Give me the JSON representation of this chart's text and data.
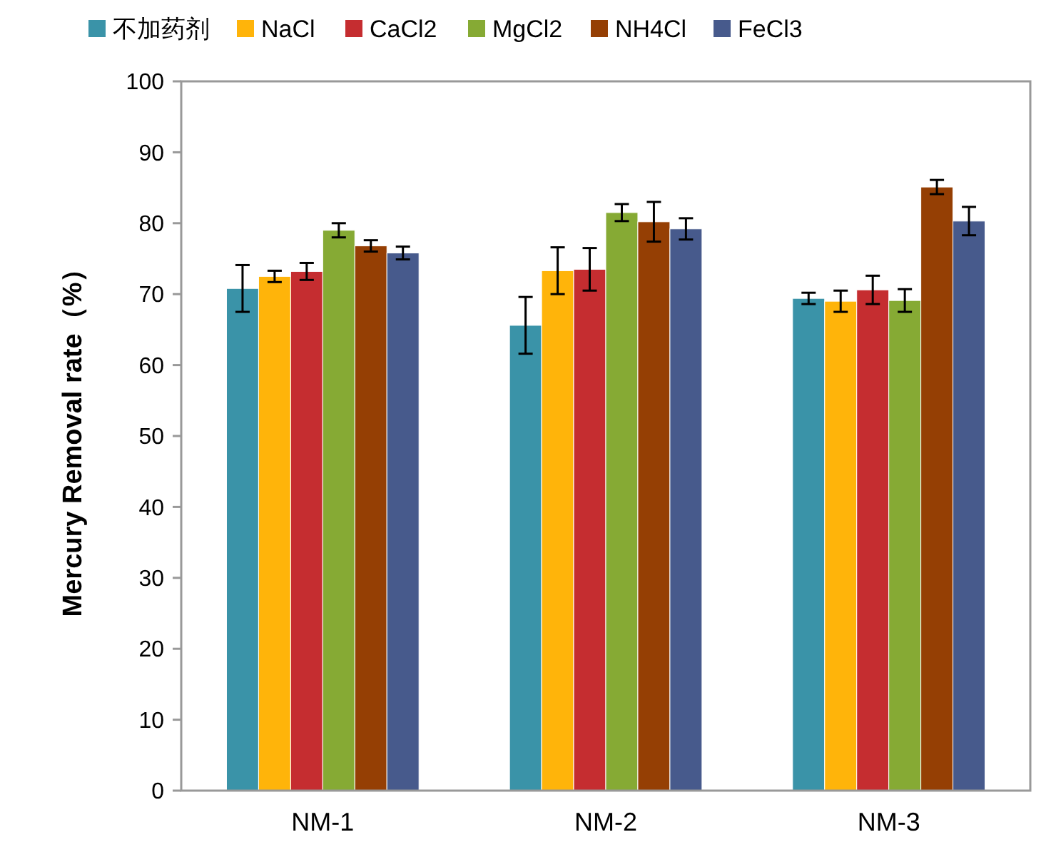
{
  "chart_data": {
    "type": "bar",
    "categories": [
      "NM-1",
      "NM-2",
      "NM-3"
    ],
    "ylabel": "Mercury Removal rate（%）",
    "ylim": [
      0,
      100
    ],
    "yticks": [
      0,
      10,
      20,
      30,
      40,
      50,
      60,
      70,
      80,
      90,
      100
    ],
    "legend": "top",
    "series": [
      {
        "name": "不加药剂",
        "color": "#3a93a8",
        "values": [
          70.8,
          65.6,
          69.4
        ],
        "errors": [
          3.3,
          4,
          0.8
        ]
      },
      {
        "name": "NaCl",
        "color": "#ffb40a",
        "values": [
          72.5,
          73.3,
          69
        ],
        "errors": [
          0.8,
          3.3,
          1.5
        ]
      },
      {
        "name": "CaCl2",
        "color": "#c52d30",
        "values": [
          73.2,
          73.5,
          70.6
        ],
        "errors": [
          1.2,
          3,
          2
        ]
      },
      {
        "name": "MgCl2",
        "color": "#86aa34",
        "values": [
          79,
          81.5,
          69.1
        ],
        "errors": [
          1,
          1.2,
          1.6
        ]
      },
      {
        "name": "NH4Cl",
        "color": "#953f04",
        "values": [
          76.8,
          80.2,
          85.1
        ],
        "errors": [
          0.8,
          2.8,
          1
        ]
      },
      {
        "name": "FeCl3",
        "color": "#475a8c",
        "values": [
          75.8,
          79.2,
          80.3
        ],
        "errors": [
          0.9,
          1.5,
          2
        ]
      }
    ]
  }
}
